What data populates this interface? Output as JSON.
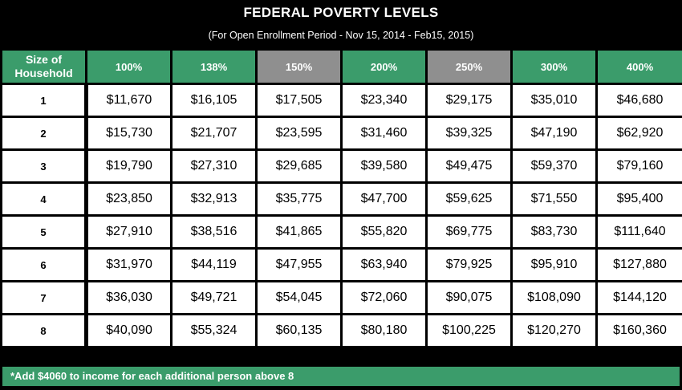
{
  "title": "FEDERAL POVERTY LEVELS",
  "subtitle": "(For Open Enrollment Period -  Nov 15, 2014 - Feb15, 2015)",
  "table": {
    "size_header_line1": "Size of",
    "size_header_line2": "Household",
    "columns": [
      {
        "label": "100%",
        "color": "#3b9c6b"
      },
      {
        "label": "138%",
        "color": "#3b9c6b"
      },
      {
        "label": "150%",
        "color": "#8f8f8f"
      },
      {
        "label": "200%",
        "color": "#3b9c6b"
      },
      {
        "label": "250%",
        "color": "#8f8f8f"
      },
      {
        "label": "300%",
        "color": "#3b9c6b"
      },
      {
        "label": "400%",
        "color": "#3b9c6b"
      }
    ],
    "rows": [
      {
        "size": "1",
        "values": [
          "$11,670",
          "$16,105",
          "$17,505",
          "$23,340",
          "$29,175",
          "$35,010",
          "$46,680"
        ]
      },
      {
        "size": "2",
        "values": [
          "$15,730",
          "$21,707",
          "$23,595",
          "$31,460",
          "$39,325",
          "$47,190",
          "$62,920"
        ]
      },
      {
        "size": "3",
        "values": [
          "$19,790",
          "$27,310",
          "$29,685",
          "$39,580",
          "$49,475",
          "$59,370",
          "$79,160"
        ]
      },
      {
        "size": "4",
        "values": [
          "$23,850",
          "$32,913",
          "$35,775",
          "$47,700",
          "$59,625",
          "$71,550",
          "$95,400"
        ]
      },
      {
        "size": "5",
        "values": [
          "$27,910",
          "$38,516",
          "$41,865",
          "$55,820",
          "$69,775",
          "$83,730",
          "$111,640"
        ]
      },
      {
        "size": "6",
        "values": [
          "$31,970",
          "$44,119",
          "$47,955",
          "$63,940",
          "$79,925",
          "$95,910",
          "$127,880"
        ]
      },
      {
        "size": "7",
        "values": [
          "$36,030",
          "$49,721",
          "$54,045",
          "$72,060",
          "$90,075",
          "$108,090",
          "$144,120"
        ]
      },
      {
        "size": "8",
        "values": [
          "$40,090",
          "$55,324",
          "$60,135",
          "$80,180",
          "$100,225",
          "$120,270",
          "$160,360"
        ]
      }
    ]
  },
  "footnote": "*Add $4060 to income for each additional person above 8"
}
